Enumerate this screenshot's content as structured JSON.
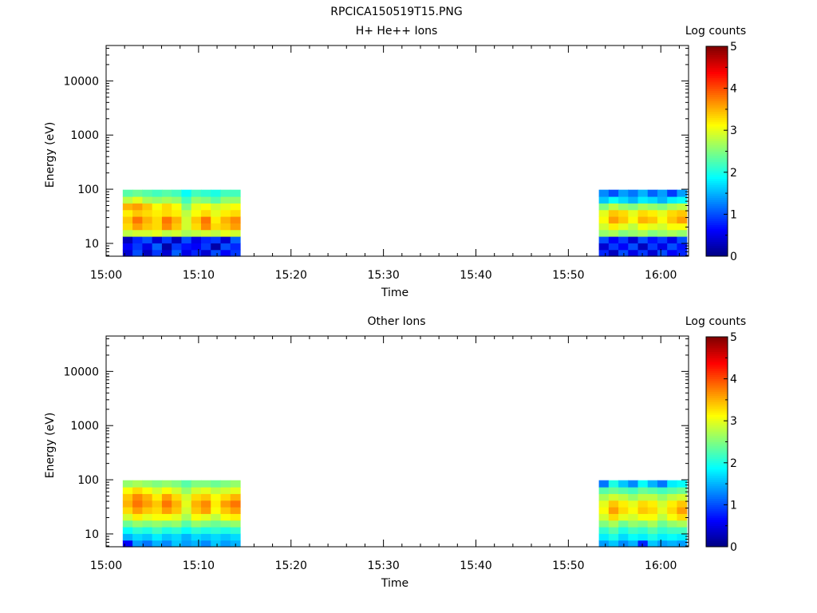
{
  "figure": {
    "title": "RPCICA150519T15.PNG"
  },
  "chart_data": [
    {
      "type": "heatmap",
      "title": "H+ He++ Ions",
      "xlabel": "Time",
      "ylabel": "Energy (eV)",
      "x_ticks": [
        "15:00",
        "15:10",
        "15:20",
        "15:30",
        "15:40",
        "15:50",
        "16:00"
      ],
      "x_tick_minutes": [
        0,
        10,
        20,
        30,
        40,
        50,
        60
      ],
      "xlim_minutes": [
        0,
        63
      ],
      "y_scale": "log",
      "ylim": [
        5.8,
        45000
      ],
      "y_ticks": [
        "10",
        "100",
        "1000",
        "10000"
      ],
      "y_tick_values": [
        10,
        100,
        1000,
        10000
      ],
      "colorbar": {
        "label": "Log counts",
        "range": [
          0,
          5
        ],
        "ticks": [
          "0",
          "1",
          "2",
          "3",
          "4",
          "5"
        ],
        "colormap": "jet"
      },
      "data_blocks": [
        {
          "start_minute": 1.8,
          "end_minute": 14.5,
          "energy_range": [
            5.8,
            98
          ],
          "columns": 12,
          "rows": 10,
          "log_counts_by_row_low_to_high": [
            [
              0.4,
              1.0,
              0.3,
              0.9,
              0.4,
              1.1,
              0.5,
              0.8,
              0.4,
              1.0,
              0.6,
              0.9
            ],
            [
              0.6,
              0.9,
              0.5,
              1.1,
              0.2,
              0.9,
              0.7,
              0.6,
              0.9,
              0.2,
              1.0,
              0.8
            ],
            [
              0.3,
              0.8,
              1.0,
              0.4,
              0.9,
              0.3,
              1.0,
              0.5,
              0.8,
              0.9,
              0.4,
              1.1
            ],
            [
              2.8,
              2.9,
              2.9,
              3.0,
              2.8,
              2.9,
              2.7,
              2.8,
              2.9,
              2.8,
              3.0,
              2.9
            ],
            [
              3.3,
              3.6,
              3.4,
              3.3,
              3.7,
              3.4,
              2.9,
              3.3,
              3.7,
              3.3,
              3.4,
              3.6
            ],
            [
              3.4,
              3.8,
              3.5,
              3.3,
              3.8,
              3.5,
              2.9,
              3.4,
              3.8,
              3.2,
              3.5,
              3.7
            ],
            [
              3.2,
              3.4,
              3.3,
              3.2,
              3.3,
              3.2,
              2.8,
              3.1,
              3.3,
              3.0,
              3.2,
              3.3
            ],
            [
              3.5,
              3.6,
              3.4,
              3.1,
              3.3,
              3.1,
              2.5,
              3.0,
              3.1,
              2.9,
              3.0,
              3.1
            ],
            [
              2.8,
              3.0,
              2.7,
              2.6,
              2.7,
              2.6,
              2.2,
              2.6,
              2.5,
              2.3,
              2.6,
              2.6
            ],
            [
              2.3,
              2.4,
              2.3,
              2.2,
              2.3,
              2.2,
              1.9,
              2.2,
              2.1,
              2.0,
              2.2,
              2.2
            ]
          ]
        },
        {
          "start_minute": 53.3,
          "end_minute": 62.8,
          "energy_range": [
            5.8,
            98
          ],
          "columns": 9,
          "rows": 10,
          "log_counts_by_row_low_to_high": [
            [
              0.8,
              0.3,
              1.0,
              0.5,
              0.9,
              0.4,
              1.0,
              0.6,
              0.8
            ],
            [
              0.4,
              0.9,
              0.6,
              1.0,
              0.3,
              0.9,
              0.5,
              1.0,
              0.7
            ],
            [
              1.0,
              0.6,
              0.9,
              0.4,
              1.0,
              0.7,
              0.9,
              0.5,
              1.0
            ],
            [
              2.6,
              2.7,
              2.5,
              2.6,
              2.7,
              2.5,
              2.6,
              2.7,
              2.6
            ],
            [
              2.9,
              3.2,
              3.0,
              2.8,
              3.1,
              3.0,
              2.9,
              3.1,
              3.1
            ],
            [
              3.1,
              3.6,
              3.4,
              3.1,
              3.5,
              3.4,
              3.1,
              3.4,
              3.6
            ],
            [
              3.0,
              3.4,
              3.3,
              3.0,
              3.3,
              3.2,
              3.0,
              3.3,
              3.4
            ],
            [
              2.5,
              2.8,
              2.6,
              2.5,
              2.7,
              2.6,
              2.5,
              2.7,
              2.8
            ],
            [
              1.6,
              1.9,
              1.7,
              1.5,
              1.8,
              1.7,
              1.5,
              1.8,
              1.9
            ],
            [
              1.3,
              1.0,
              1.4,
              1.2,
              1.5,
              1.1,
              1.4,
              0.9,
              1.4
            ]
          ]
        }
      ]
    },
    {
      "type": "heatmap",
      "title": "Other Ions",
      "xlabel": "Time",
      "ylabel": "Energy (eV)",
      "x_ticks": [
        "15:00",
        "15:10",
        "15:20",
        "15:30",
        "15:40",
        "15:50",
        "16:00"
      ],
      "x_tick_minutes": [
        0,
        10,
        20,
        30,
        40,
        50,
        60
      ],
      "xlim_minutes": [
        0,
        63
      ],
      "y_scale": "log",
      "ylim": [
        5.8,
        45000
      ],
      "y_ticks": [
        "10",
        "100",
        "1000",
        "10000"
      ],
      "y_tick_values": [
        10,
        100,
        1000,
        10000
      ],
      "colorbar": {
        "label": "Log counts",
        "range": [
          0,
          5
        ],
        "ticks": [
          "0",
          "1",
          "2",
          "3",
          "4",
          "5"
        ],
        "colormap": "jet"
      },
      "data_blocks": [
        {
          "start_minute": 1.8,
          "end_minute": 14.5,
          "energy_range": [
            5.8,
            98
          ],
          "columns": 12,
          "rows": 10,
          "log_counts_by_row_low_to_high": [
            [
              0.6,
              1.4,
              1.2,
              1.5,
              1.3,
              1.6,
              1.4,
              1.5,
              1.3,
              1.6,
              1.4,
              1.5
            ],
            [
              1.5,
              1.7,
              1.6,
              1.8,
              1.6,
              1.7,
              1.5,
              1.7,
              1.6,
              1.7,
              1.6,
              1.7
            ],
            [
              1.9,
              2.1,
              2.0,
              2.2,
              2.0,
              2.1,
              1.9,
              2.1,
              2.0,
              2.1,
              2.0,
              2.1
            ],
            [
              2.4,
              2.6,
              2.5,
              2.6,
              2.5,
              2.6,
              2.3,
              2.6,
              2.5,
              2.4,
              2.5,
              2.6
            ],
            [
              2.9,
              3.2,
              3.0,
              3.1,
              3.1,
              3.0,
              2.7,
              3.1,
              3.0,
              2.8,
              3.1,
              3.2
            ],
            [
              3.3,
              3.6,
              3.4,
              3.3,
              3.6,
              3.4,
              2.9,
              3.4,
              3.6,
              3.1,
              3.4,
              3.6
            ],
            [
              3.5,
              3.8,
              3.6,
              3.4,
              3.8,
              3.5,
              3.0,
              3.5,
              3.7,
              3.2,
              3.6,
              3.8
            ],
            [
              3.4,
              3.7,
              3.5,
              3.2,
              3.6,
              3.3,
              2.9,
              3.3,
              3.4,
              3.1,
              3.3,
              3.5
            ],
            [
              3.1,
              3.3,
              3.1,
              2.9,
              3.1,
              2.9,
              2.6,
              2.9,
              3.0,
              2.8,
              2.9,
              3.0
            ],
            [
              2.6,
              2.7,
              2.6,
              2.5,
              2.6,
              2.5,
              2.3,
              2.5,
              2.5,
              2.4,
              2.5,
              2.6
            ]
          ]
        },
        {
          "start_minute": 53.3,
          "end_minute": 62.8,
          "energy_range": [
            5.8,
            98
          ],
          "columns": 9,
          "rows": 10,
          "log_counts_by_row_low_to_high": [
            [
              1.4,
              1.6,
              1.3,
              1.5,
              0.8,
              1.6,
              1.4,
              1.5,
              1.4
            ],
            [
              1.8,
              2.0,
              1.7,
              1.9,
              1.8,
              2.0,
              1.8,
              1.9,
              1.8
            ],
            [
              2.1,
              2.3,
              2.0,
              2.2,
              2.1,
              2.3,
              2.1,
              2.2,
              2.2
            ],
            [
              2.5,
              2.7,
              2.4,
              2.6,
              2.5,
              2.7,
              2.4,
              2.6,
              2.7
            ],
            [
              2.9,
              3.3,
              3.0,
              2.9,
              3.1,
              3.1,
              2.8,
              3.1,
              3.3
            ],
            [
              3.1,
              3.6,
              3.3,
              3.1,
              3.4,
              3.3,
              3.0,
              3.3,
              3.6
            ],
            [
              3.0,
              3.4,
              3.2,
              3.0,
              3.3,
              3.2,
              2.9,
              3.2,
              3.4
            ],
            [
              2.7,
              2.9,
              2.8,
              2.6,
              2.8,
              2.8,
              2.6,
              2.8,
              2.9
            ],
            [
              2.3,
              2.4,
              2.3,
              2.2,
              2.4,
              2.3,
              2.2,
              2.3,
              2.4
            ],
            [
              1.2,
              2.0,
              1.6,
              1.3,
              1.9,
              1.5,
              1.2,
              1.8,
              1.9
            ]
          ]
        }
      ]
    }
  ]
}
